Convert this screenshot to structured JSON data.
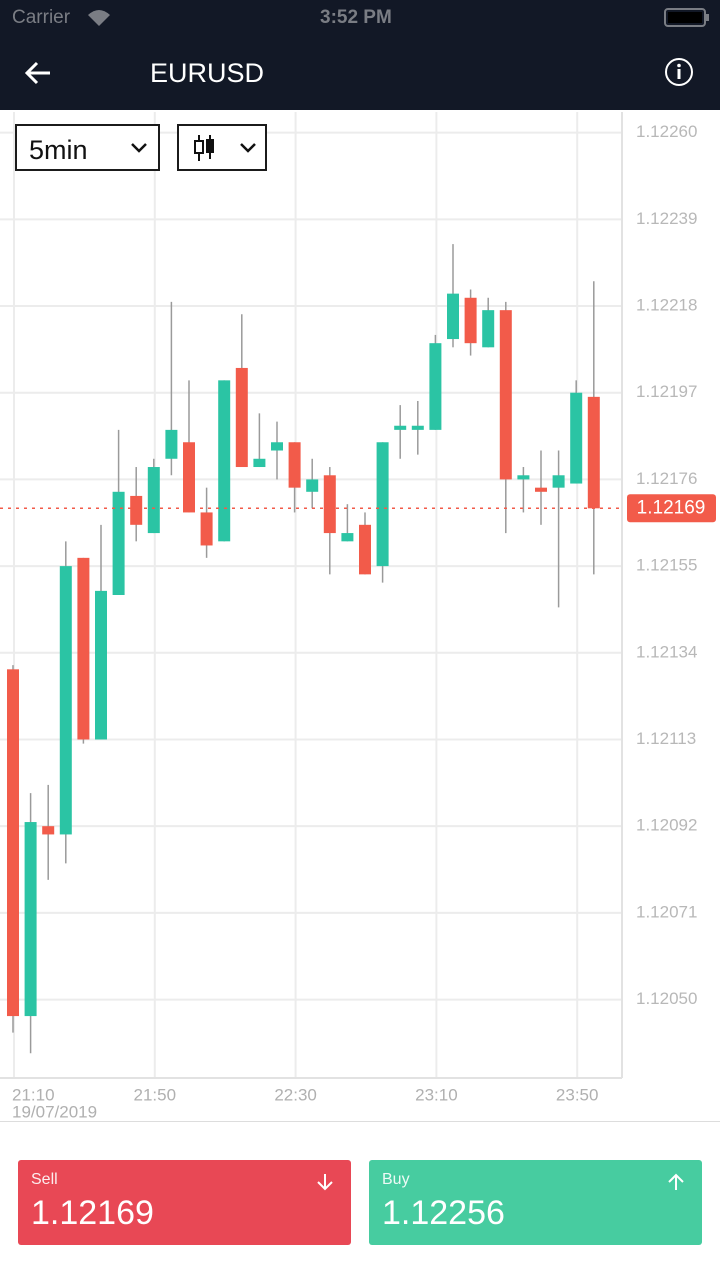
{
  "status_bar": {
    "carrier": "Carrier",
    "time": "3:52 PM"
  },
  "header": {
    "title": "EURUSD"
  },
  "controls": {
    "interval": "5min"
  },
  "chart_data": {
    "type": "candlestick",
    "categories": [
      "21:10",
      null,
      null,
      null,
      null,
      null,
      null,
      null,
      "21:50",
      null,
      null,
      null,
      null,
      null,
      null,
      null,
      "22:30",
      null,
      null,
      null,
      null,
      null,
      null,
      null,
      "23:10",
      null,
      null,
      null,
      null,
      null,
      null,
      null,
      "23:50",
      null
    ],
    "x_date_label": "19/07/2019",
    "open": [
      1.1213,
      1.12046,
      1.12092,
      1.1209,
      1.12157,
      1.12113,
      1.12148,
      1.12172,
      1.12163,
      1.12181,
      1.12185,
      1.12168,
      1.12161,
      1.12203,
      1.12179,
      1.12183,
      1.12185,
      1.12173,
      1.12177,
      1.12161,
      1.12165,
      1.12155,
      1.12188,
      1.12188,
      1.12188,
      1.1221,
      1.1222,
      1.12208,
      1.12217,
      1.12176,
      1.12174,
      1.12174,
      1.12175,
      1.12196
    ],
    "high": [
      1.12131,
      1.121,
      1.12102,
      1.12161,
      1.12157,
      1.12165,
      1.12188,
      1.12179,
      1.12181,
      1.12219,
      1.122,
      1.12174,
      1.122,
      1.12216,
      1.12192,
      1.1219,
      1.12185,
      1.12181,
      1.12179,
      1.1217,
      1.12168,
      1.12185,
      1.12194,
      1.12195,
      1.12211,
      1.12233,
      1.12222,
      1.1222,
      1.12219,
      1.12179,
      1.12183,
      1.12183,
      1.122,
      1.12224
    ],
    "low": [
      1.12042,
      1.12037,
      1.12079,
      1.12083,
      1.12112,
      1.12113,
      1.12148,
      1.12161,
      1.12163,
      1.12177,
      1.12168,
      1.12157,
      1.12161,
      1.12179,
      1.12179,
      1.12176,
      1.12168,
      1.12169,
      1.12153,
      1.12161,
      1.12153,
      1.12151,
      1.12181,
      1.12182,
      1.12188,
      1.12208,
      1.12206,
      1.12208,
      1.12163,
      1.12168,
      1.12165,
      1.12145,
      1.12175,
      1.12153
    ],
    "close": [
      1.12046,
      1.12093,
      1.1209,
      1.12155,
      1.12113,
      1.12149,
      1.12173,
      1.12165,
      1.12179,
      1.12188,
      1.12168,
      1.1216,
      1.122,
      1.12179,
      1.12181,
      1.12185,
      1.12174,
      1.12176,
      1.12163,
      1.12163,
      1.12153,
      1.12185,
      1.12189,
      1.12189,
      1.12209,
      1.12221,
      1.12209,
      1.12217,
      1.12176,
      1.12177,
      1.12173,
      1.12177,
      1.12197,
      1.12169
    ],
    "up_color": "#2bc4a4",
    "down_color": "#f25b4a",
    "ylim": [
      1.12031,
      1.12265
    ],
    "yticks": [
      {
        "value": 1.1226,
        "label": "1.12260"
      },
      {
        "value": 1.12239,
        "label": "1.12239"
      },
      {
        "value": 1.12218,
        "label": "1.12218"
      },
      {
        "value": 1.12197,
        "label": "1.12197"
      },
      {
        "value": 1.12176,
        "label": "1.12176"
      },
      {
        "value": 1.12155,
        "label": "1.12155"
      },
      {
        "value": 1.12134,
        "label": "1.12134"
      },
      {
        "value": 1.12113,
        "label": "1.12113"
      },
      {
        "value": 1.12092,
        "label": "1.12092"
      },
      {
        "value": 1.12071,
        "label": "1.12071"
      },
      {
        "value": 1.1205,
        "label": "1.12050"
      }
    ],
    "grid": true,
    "current_price": {
      "value": 1.12169,
      "label": "1.12169"
    }
  },
  "footer": {
    "sell": {
      "label": "Sell",
      "price": "1.12169"
    },
    "buy": {
      "label": "Buy",
      "price": "1.12256"
    }
  }
}
